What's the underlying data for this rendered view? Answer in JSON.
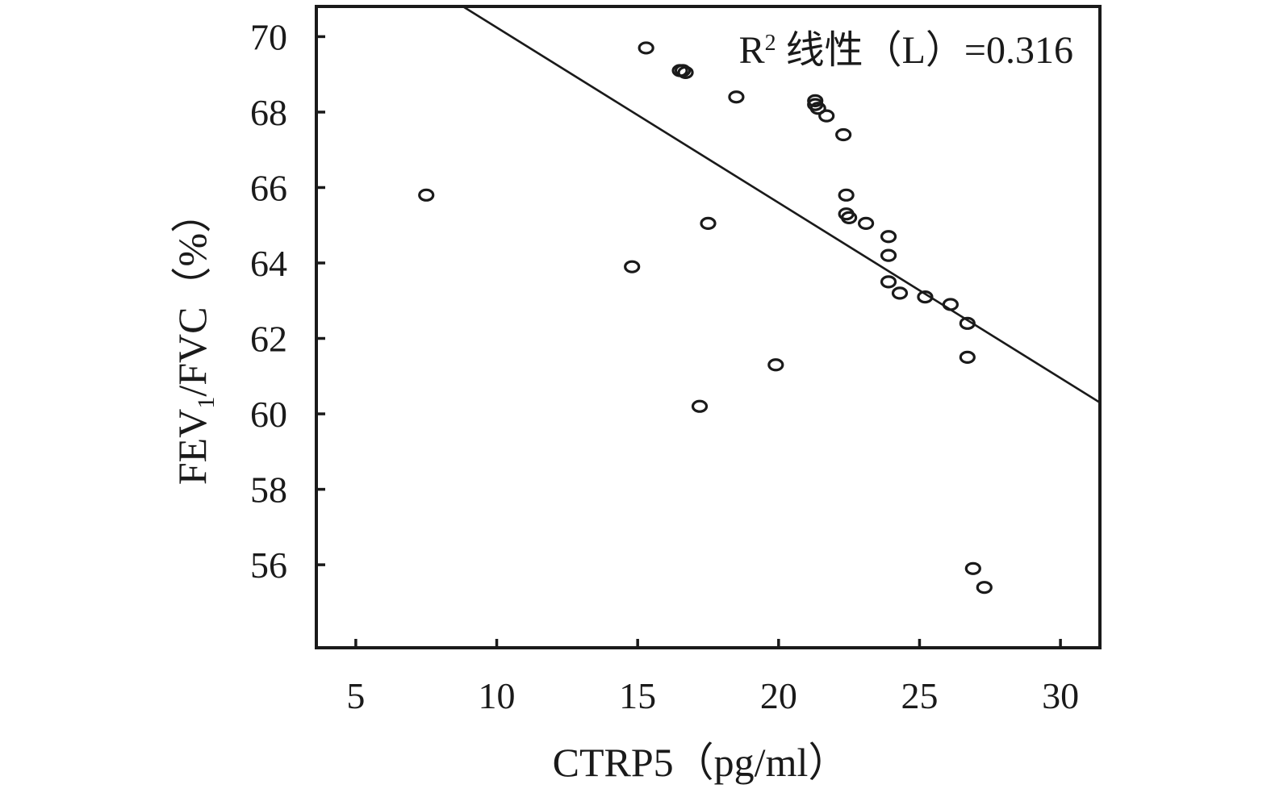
{
  "chart_data": {
    "type": "scatter",
    "title": "",
    "xlabel": "CTRP5（pg/ml）",
    "ylabel_parts": {
      "before_sub": "FEV",
      "sub": "1",
      "after_sub": "/FVC（%）"
    },
    "xlim": [
      3.6,
      31.4
    ],
    "ylim": [
      53.8,
      70.8
    ],
    "xticks": [
      5,
      10,
      15,
      20,
      25,
      30
    ],
    "yticks": [
      56,
      58,
      60,
      62,
      64,
      66,
      68,
      70
    ],
    "grid": false,
    "legend": "none",
    "annotation": {
      "r_letter": "R",
      "sup": "2",
      "rest": " 线性（L）=0.316",
      "placement": "top-right"
    },
    "fit_line": {
      "x": [
        8.8,
        31.4
      ],
      "y": [
        70.8,
        60.3
      ]
    },
    "points": [
      {
        "x": 7.5,
        "y": 65.8
      },
      {
        "x": 14.8,
        "y": 63.9
      },
      {
        "x": 15.3,
        "y": 69.7
      },
      {
        "x": 16.5,
        "y": 69.1
      },
      {
        "x": 16.6,
        "y": 69.1
      },
      {
        "x": 16.7,
        "y": 69.05
      },
      {
        "x": 17.2,
        "y": 60.2
      },
      {
        "x": 17.5,
        "y": 65.05
      },
      {
        "x": 18.5,
        "y": 68.4
      },
      {
        "x": 19.9,
        "y": 61.3
      },
      {
        "x": 21.3,
        "y": 68.3
      },
      {
        "x": 21.3,
        "y": 68.2
      },
      {
        "x": 21.4,
        "y": 68.1
      },
      {
        "x": 21.7,
        "y": 67.9
      },
      {
        "x": 22.3,
        "y": 67.4
      },
      {
        "x": 22.4,
        "y": 65.8
      },
      {
        "x": 22.4,
        "y": 65.3
      },
      {
        "x": 22.5,
        "y": 65.2
      },
      {
        "x": 23.1,
        "y": 65.05
      },
      {
        "x": 23.9,
        "y": 64.7
      },
      {
        "x": 23.9,
        "y": 64.2
      },
      {
        "x": 23.9,
        "y": 63.5
      },
      {
        "x": 24.3,
        "y": 63.2
      },
      {
        "x": 25.2,
        "y": 63.1
      },
      {
        "x": 26.1,
        "y": 62.9
      },
      {
        "x": 26.7,
        "y": 62.4
      },
      {
        "x": 26.7,
        "y": 61.5
      },
      {
        "x": 26.9,
        "y": 55.9
      },
      {
        "x": 27.3,
        "y": 55.4
      }
    ]
  }
}
